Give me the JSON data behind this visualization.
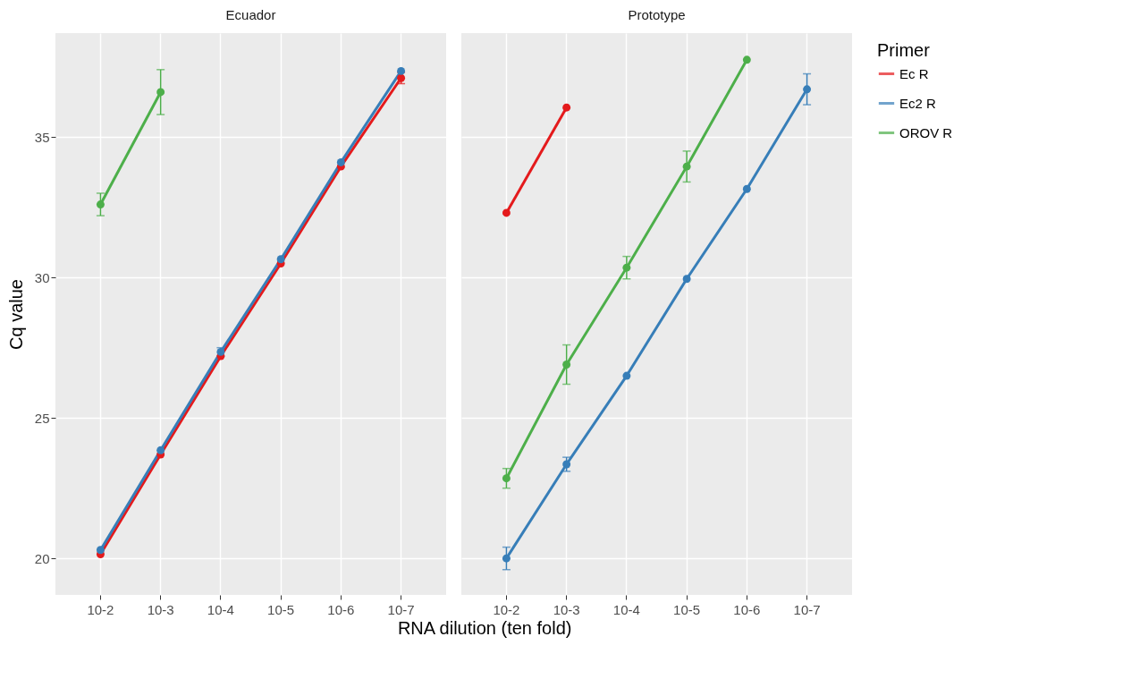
{
  "chart_data": [
    {
      "type": "line",
      "title": "Ecuador",
      "ylabel": "Cq value",
      "xlabel": "RNA dilution (ten fold)",
      "categories": [
        "10-2",
        "10-3",
        "10-4",
        "10-5",
        "10-6",
        "10-7"
      ],
      "ylim": [
        18.7,
        38.7
      ],
      "yticks": [
        20,
        25,
        30,
        35
      ],
      "grid": true,
      "marker": "circle",
      "legend": "right",
      "series": [
        {
          "name": "Ec R",
          "color": "#e41a1c",
          "values": [
            20.15,
            23.7,
            27.2,
            30.5,
            33.95,
            37.1
          ],
          "errors": [
            null,
            null,
            null,
            null,
            null,
            0.2
          ]
        },
        {
          "name": "Ec2 R",
          "color": "#377eb8",
          "values": [
            20.3,
            23.85,
            27.35,
            30.65,
            34.1,
            37.35
          ],
          "errors": [
            null,
            null,
            0.15,
            null,
            null,
            null
          ]
        },
        {
          "name": "OROV R",
          "color": "#4daf4a",
          "values": [
            32.6,
            36.6,
            null,
            null,
            null,
            null
          ],
          "errors": [
            0.4,
            0.8,
            null,
            null,
            null,
            null
          ]
        }
      ]
    },
    {
      "type": "line",
      "title": "Prototype",
      "categories": [
        "10-2",
        "10-3",
        "10-4",
        "10-5",
        "10-6",
        "10-7"
      ],
      "ylim": [
        18.7,
        38.7
      ],
      "yticks": [
        20,
        25,
        30,
        35
      ],
      "grid": true,
      "marker": "circle",
      "tick_labels": "x",
      "legend": "right",
      "legend_title": "Primer",
      "series": [
        {
          "name": "Ec R",
          "color": "#e41a1c",
          "values": [
            32.3,
            36.05,
            null,
            null,
            null,
            null
          ]
        },
        {
          "name": "Ec2 R",
          "color": "#377eb8",
          "values": [
            20.0,
            23.35,
            26.5,
            29.95,
            33.15,
            36.7
          ],
          "errors": [
            0.4,
            0.25,
            null,
            null,
            null,
            0.55
          ]
        },
        {
          "name": "OROV R",
          "color": "#4daf4a",
          "values": [
            22.85,
            26.9,
            30.35,
            33.95,
            37.75,
            null
          ],
          "errors": [
            0.35,
            0.7,
            0.4,
            0.55,
            null,
            null
          ]
        }
      ]
    }
  ]
}
